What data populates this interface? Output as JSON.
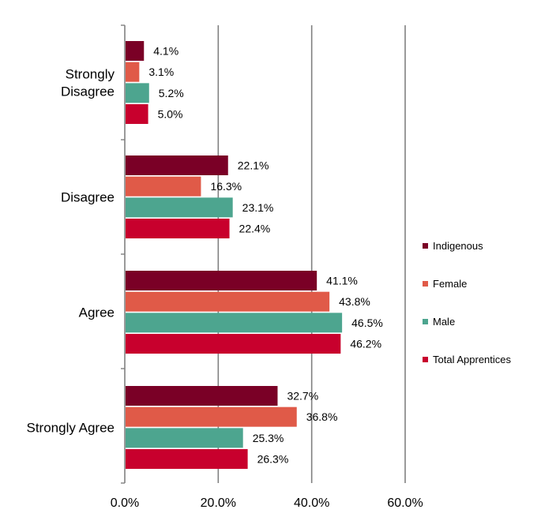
{
  "chart_data": {
    "type": "bar",
    "orientation": "horizontal",
    "title": "",
    "xlabel": "",
    "ylabel": "",
    "xlim": [
      0,
      60
    ],
    "x_ticks": [
      0,
      20,
      40,
      60
    ],
    "x_tick_labels": [
      "0.0%",
      "20.0%",
      "40.0%",
      "60.0%"
    ],
    "grid": true,
    "legend_position": "right",
    "categories": [
      [
        "Strongly",
        "Disagree"
      ],
      [
        "Disagree"
      ],
      [
        "Agree"
      ],
      [
        "Strongly Agree"
      ]
    ],
    "series": [
      {
        "name": "Indigenous",
        "color": "#7a0026",
        "values": [
          4.1,
          22.1,
          41.1,
          32.7
        ],
        "labels": [
          "4.1%",
          "22.1%",
          "41.1%",
          "32.7%"
        ]
      },
      {
        "name": "Female",
        "color": "#e05a48",
        "values": [
          3.1,
          16.3,
          43.8,
          36.8
        ],
        "labels": [
          "3.1%",
          "16.3%",
          "43.8%",
          "36.8%"
        ]
      },
      {
        "name": "Male",
        "color": "#4da58f",
        "values": [
          5.2,
          23.1,
          46.5,
          25.3
        ],
        "labels": [
          "5.2%",
          "23.1%",
          "46.5%",
          "25.3%"
        ]
      },
      {
        "name": "Total Apprentices",
        "color": "#c8002d",
        "values": [
          5.0,
          22.4,
          46.2,
          26.3
        ],
        "labels": [
          "5.0%",
          "22.4%",
          "46.2%",
          "26.3%"
        ]
      }
    ]
  }
}
